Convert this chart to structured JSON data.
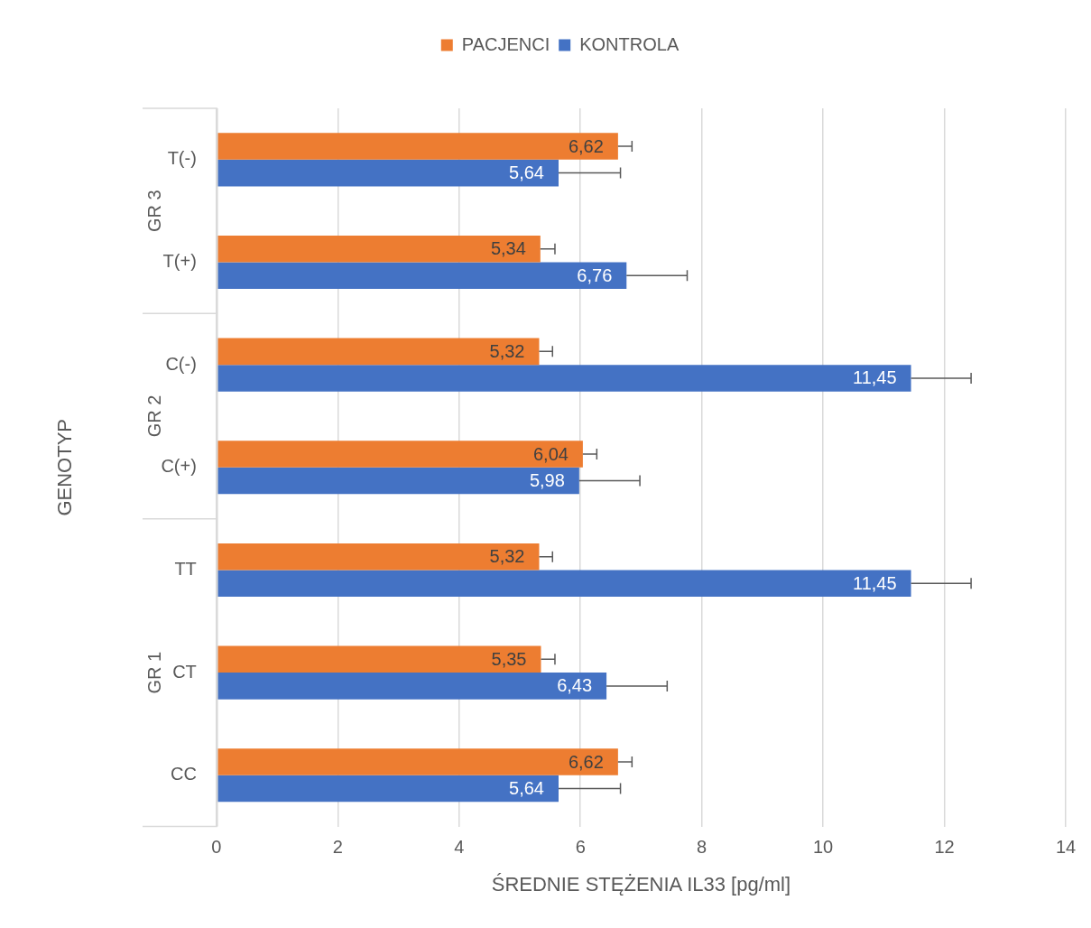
{
  "chart_data": {
    "type": "bar",
    "orientation": "horizontal",
    "xlabel": "ŚREDNIE STĘŻENIA IL33 [pg/ml]",
    "ylabel": "GENOTYP",
    "categories": [
      "T(-)",
      "T(+)",
      "C(-)",
      "C(+)",
      "TT",
      "CT",
      "CC"
    ],
    "series": [
      {
        "name": "PACJENCI",
        "color": "#ed7d31",
        "values": [
          6.62,
          5.34,
          5.32,
          6.04,
          5.32,
          5.35,
          6.62
        ],
        "value_labels": [
          "6,62",
          "5,34",
          "5,32",
          "6,04",
          "5,32",
          "5,35",
          "6,62"
        ],
        "errors": [
          [
            6.62,
            6.85
          ],
          [
            5.34,
            5.58
          ],
          [
            5.32,
            5.54
          ],
          [
            6.04,
            6.27
          ],
          [
            5.32,
            5.54
          ],
          [
            5.35,
            5.58
          ],
          [
            6.62,
            6.85
          ]
        ]
      },
      {
        "name": "KONTROLA",
        "color": "#4472c4",
        "values": [
          5.64,
          6.76,
          11.45,
          5.98,
          11.45,
          6.43,
          5.64
        ],
        "value_labels": [
          "5,64",
          "6,76",
          "11,45",
          "5,98",
          "11,45",
          "6,43",
          "5,64"
        ],
        "errors": [
          [
            5.64,
            6.66
          ],
          [
            6.76,
            7.76
          ],
          [
            11.45,
            12.44
          ],
          [
            5.98,
            6.98
          ],
          [
            11.45,
            12.44
          ],
          [
            6.43,
            7.43
          ],
          [
            5.64,
            6.66
          ]
        ]
      }
    ],
    "annotations": [
      "GR 3",
      "GR 2",
      "GR 1"
    ],
    "xlim": [
      0,
      14
    ],
    "xticks": [
      0,
      2,
      4,
      6,
      8,
      10,
      12,
      14
    ],
    "grid": "x",
    "legend": "top"
  }
}
